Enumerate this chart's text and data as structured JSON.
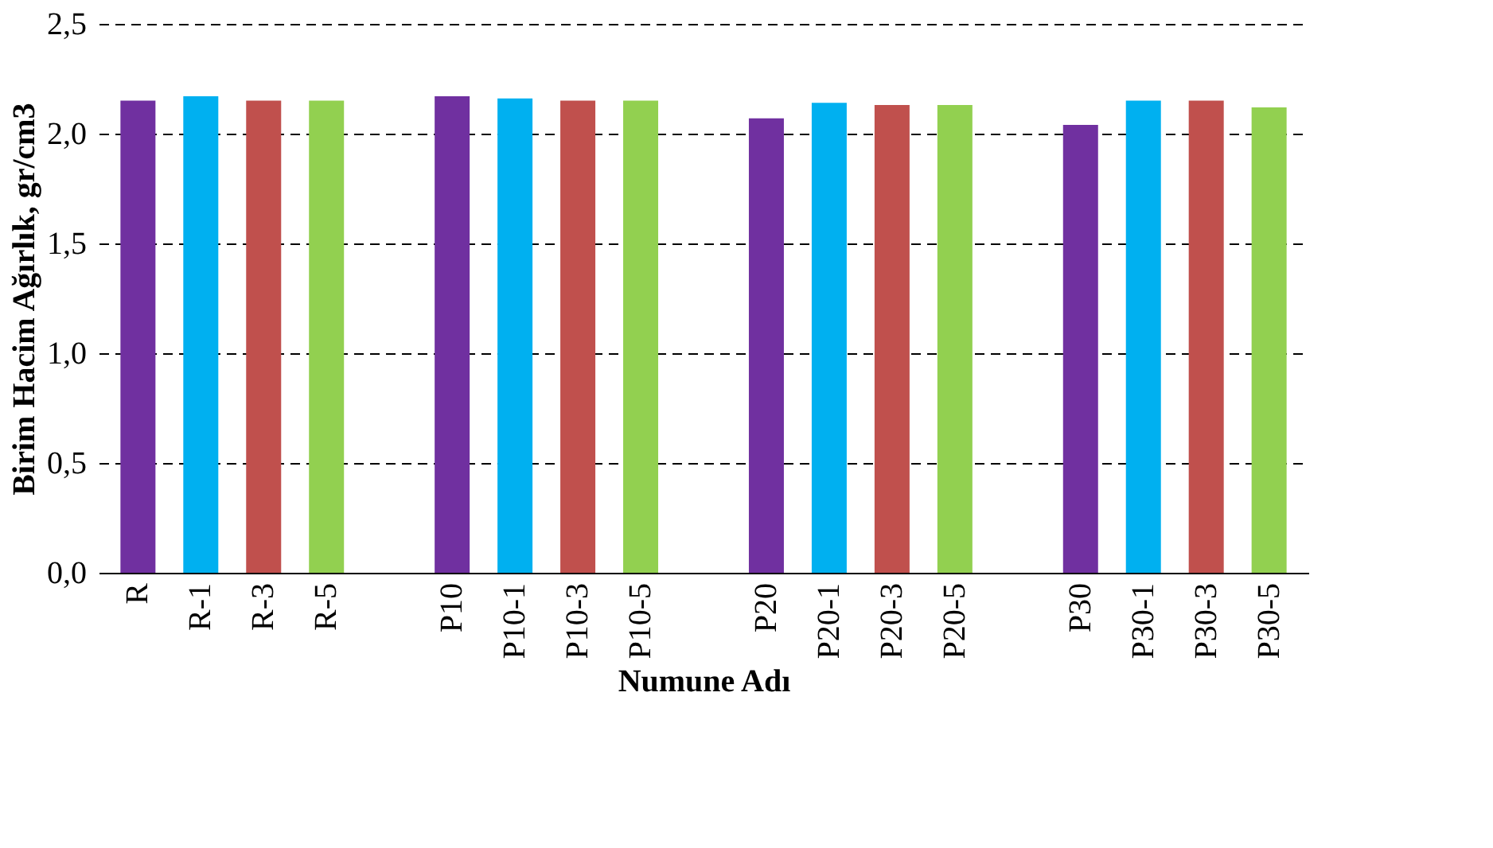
{
  "chart_data": {
    "type": "bar",
    "xlabel": "Numune Adı",
    "ylabel": "Birim Hacim Ağırlık, gr/cm3",
    "categories": [
      "R",
      "R-1",
      "R-3",
      "R-5",
      null,
      "P10",
      "P10-1",
      "P10-3",
      "P10-5",
      null,
      "P20",
      "P20-1",
      "P20-3",
      "P20-5",
      null,
      "P30",
      "P30-1",
      "P30-3",
      "P30-5"
    ],
    "values": [
      2.15,
      2.17,
      2.15,
      2.15,
      null,
      2.17,
      2.16,
      2.15,
      2.15,
      null,
      2.07,
      2.14,
      2.13,
      2.13,
      null,
      2.04,
      2.15,
      2.15,
      2.12
    ],
    "colors": [
      "#7030a0",
      "#00b0f0",
      "#c0504d",
      "#92d050",
      null,
      "#7030a0",
      "#00b0f0",
      "#c0504d",
      "#92d050",
      null,
      "#7030a0",
      "#00b0f0",
      "#c0504d",
      "#92d050",
      null,
      "#7030a0",
      "#00b0f0",
      "#c0504d",
      "#92d050"
    ],
    "ylim": [
      0,
      2.5
    ],
    "yticks": [
      {
        "value": 0,
        "label": "0,0"
      },
      {
        "value": 0.5,
        "label": "0,5"
      },
      {
        "value": 1,
        "label": "1,0"
      },
      {
        "value": 1.5,
        "label": "1,5"
      },
      {
        "value": 2,
        "label": "2,0"
      },
      {
        "value": 2.5,
        "label": "2,5"
      }
    ],
    "grid": "y"
  }
}
